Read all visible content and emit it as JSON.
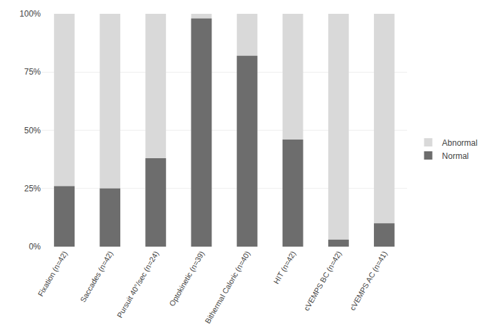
{
  "chart_data": {
    "type": "bar",
    "categories": [
      "Fixation (n=42)",
      "Saccades (n=42)",
      "Pursuit 40°/sec (n=24)",
      "Optokinetic (n=39)",
      "Bithermal Caloric (n=40)",
      "HIT (n=42)",
      "cVEMPS BC (n=42)",
      "cVEMPS AC (n=41)"
    ],
    "series": [
      {
        "name": "Abnormal",
        "color": "#d9d9d9",
        "values": [
          100,
          100,
          100,
          100,
          100,
          100,
          100,
          100
        ]
      },
      {
        "name": "Normal",
        "color": "#6d6d6d",
        "values": [
          26,
          25,
          38,
          98,
          82,
          46,
          3,
          10
        ]
      }
    ],
    "ylim": [
      0,
      100
    ],
    "yticks": [
      {
        "value": 0,
        "label": "0%"
      },
      {
        "value": 25,
        "label": "25%"
      },
      {
        "value": 50,
        "label": "50%"
      },
      {
        "value": 75,
        "label": "75%"
      },
      {
        "value": 100,
        "label": "100%"
      }
    ],
    "grid": true,
    "legend": "right"
  }
}
